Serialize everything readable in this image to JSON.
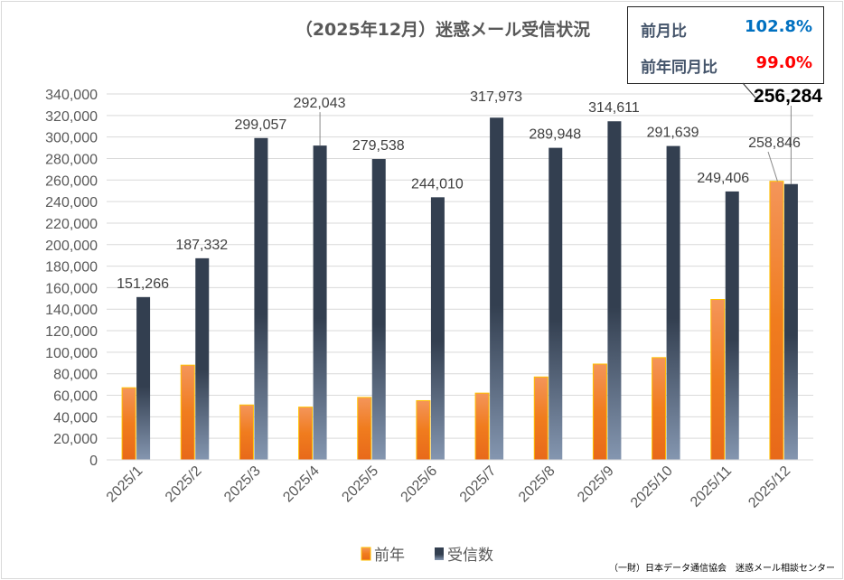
{
  "chart_data": {
    "type": "bar",
    "title": "（2025年12月）迷惑メール受信状況",
    "categories": [
      "2025/1",
      "2025/2",
      "2025/3",
      "2025/4",
      "2025/5",
      "2025/6",
      "2025/7",
      "2025/8",
      "2025/9",
      "2025/10",
      "2025/11",
      "2025/12"
    ],
    "series": [
      {
        "name": "前年",
        "color": "#f07c1e",
        "values": [
          67000,
          88000,
          51000,
          49000,
          58000,
          55000,
          62000,
          77000,
          89000,
          95000,
          149000,
          258846
        ]
      },
      {
        "name": "受信数",
        "color": "#333f50",
        "values": [
          151266,
          187332,
          299057,
          292043,
          279538,
          244010,
          317973,
          289948,
          314611,
          291639,
          249406,
          256284
        ]
      }
    ],
    "data_labels": [
      "151,266",
      "187,332",
      "299,057",
      "292,043",
      "279,538",
      "244,010",
      "317,973",
      "289,948",
      "314,611",
      "291,639",
      "249,406",
      "256,284"
    ],
    "prev_year_label_dec": "258,846",
    "ylim": [
      0,
      340000
    ],
    "ytick_step": 20000,
    "yticks": [
      "0",
      "20,000",
      "40,000",
      "60,000",
      "80,000",
      "100,000",
      "120,000",
      "140,000",
      "160,000",
      "180,000",
      "200,000",
      "220,000",
      "240,000",
      "260,000",
      "280,000",
      "300,000",
      "320,000",
      "340,000"
    ],
    "grid": true,
    "legend": "bottom"
  },
  "summary": {
    "mom_label": "前月比",
    "mom_value": "102.8%",
    "mom_color": "#0070c0",
    "yoy_label": "前年同月比",
    "yoy_value": "99.0%",
    "yoy_color": "#ff0000"
  },
  "credit": "（一財）日本データ通信協会　迷惑メール相談センター"
}
